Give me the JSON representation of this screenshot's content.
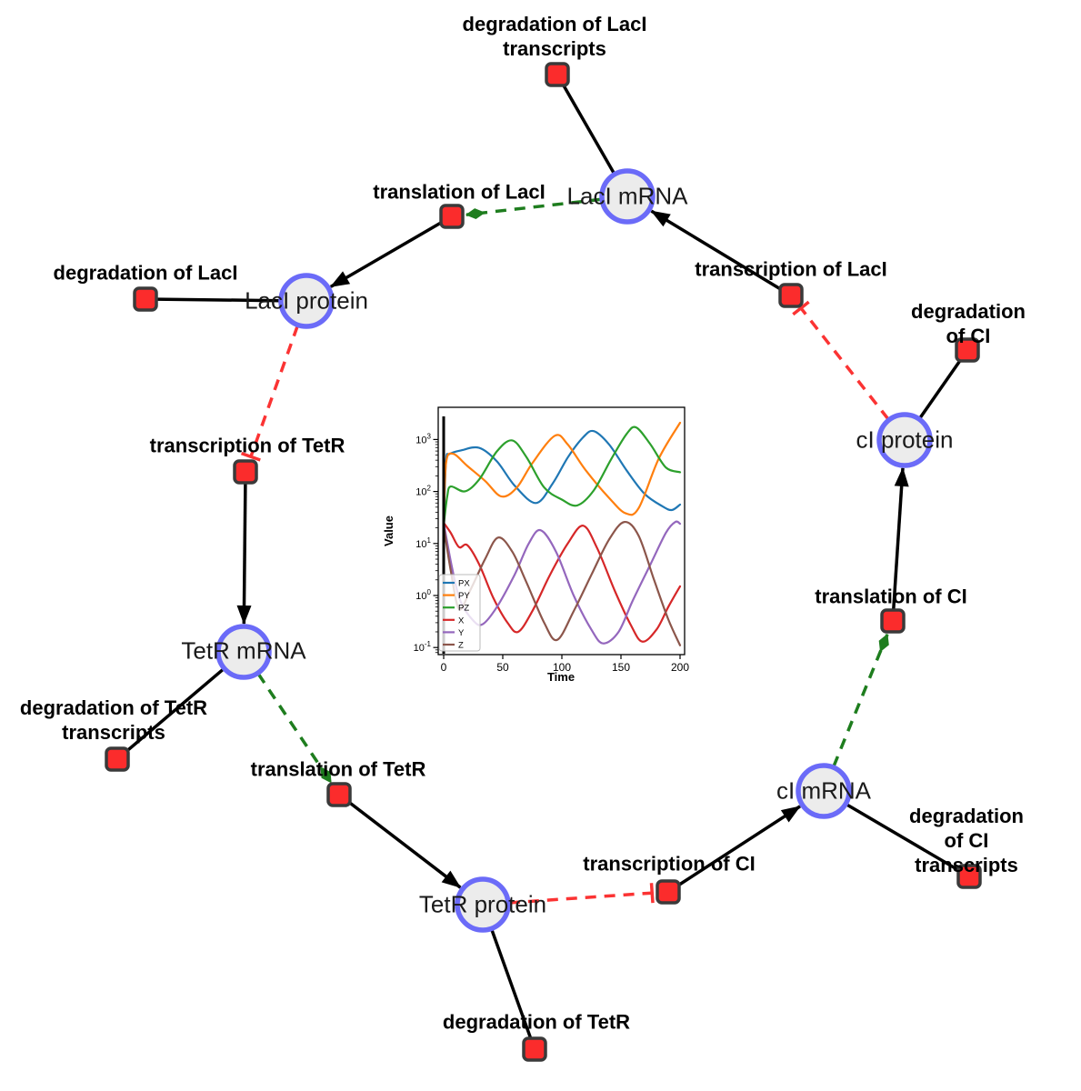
{
  "figure": {
    "species_nodes": [
      {
        "id": "laci-mrna",
        "label": "LacI mRNA"
      },
      {
        "id": "laci-protein",
        "label": "LacI protein"
      },
      {
        "id": "tetr-mrna",
        "label": "TetR mRNA"
      },
      {
        "id": "tetr-protein",
        "label": "TetR protein"
      },
      {
        "id": "ci-mrna",
        "label": "cI mRNA"
      },
      {
        "id": "ci-protein",
        "label": "cI protein"
      }
    ],
    "reaction_nodes": [
      {
        "id": "deg-laci-transcripts",
        "label": "degradation of LacI\ntranscripts"
      },
      {
        "id": "translation-laci",
        "label": "translation of LacI"
      },
      {
        "id": "deg-laci",
        "label": "degradation of LacI"
      },
      {
        "id": "transcription-tetr",
        "label": "transcription of TetR"
      },
      {
        "id": "deg-tetr-transcripts",
        "label": "degradation of TetR\ntranscripts"
      },
      {
        "id": "translation-tetr",
        "label": "translation of TetR"
      },
      {
        "id": "deg-tetr",
        "label": "degradation of TetR"
      },
      {
        "id": "transcription-ci",
        "label": "transcription of CI"
      },
      {
        "id": "deg-ci-transcripts",
        "label": "degradation of CI\ntranscripts"
      },
      {
        "id": "translation-ci",
        "label": "translation of CI"
      },
      {
        "id": "deg-ci",
        "label": "degradation of CI"
      },
      {
        "id": "transcription-laci",
        "label": "transcription of LacI"
      }
    ],
    "colors": {
      "species_fill": "#ececec",
      "species_stroke": "#6b6bf8",
      "reaction_fill": "#fb2c2c",
      "reaction_stroke": "#3a3a3a",
      "product_edge": "#000000",
      "modifier_edge": "#1e7d1e",
      "inhibition_edge": "#fb3333"
    }
  },
  "chart_data": {
    "type": "line",
    "xlabel": "Time",
    "ylabel": "Value",
    "x_ticks": [
      0,
      50,
      100,
      150,
      200
    ],
    "y_tick_exponents": [
      -1,
      0,
      1,
      2,
      3
    ],
    "xlim": [
      -6,
      204
    ],
    "yscale": "log",
    "grid": false,
    "legend_position": "lower left",
    "init_line_t": 0,
    "series": [
      {
        "name": "PX",
        "color": "#1f77b4",
        "points": [
          [
            0,
            22
          ],
          [
            2,
            380
          ],
          [
            5,
            525
          ],
          [
            15,
            620
          ],
          [
            30,
            690
          ],
          [
            45,
            380
          ],
          [
            60,
            130
          ],
          [
            78,
            60
          ],
          [
            92,
            140
          ],
          [
            105,
            450
          ],
          [
            118,
            1100
          ],
          [
            127,
            1450
          ],
          [
            140,
            800
          ],
          [
            155,
            250
          ],
          [
            170,
            90
          ],
          [
            185,
            52
          ],
          [
            193,
            44
          ],
          [
            200,
            56
          ]
        ]
      },
      {
        "name": "PY",
        "color": "#ff7f0e",
        "points": [
          [
            0,
            22
          ],
          [
            2,
            350
          ],
          [
            8,
            530
          ],
          [
            20,
            310
          ],
          [
            35,
            160
          ],
          [
            49,
            80
          ],
          [
            62,
            120
          ],
          [
            75,
            350
          ],
          [
            94,
            1180
          ],
          [
            105,
            800
          ],
          [
            120,
            260
          ],
          [
            140,
            75
          ],
          [
            154,
            38
          ],
          [
            165,
            48
          ],
          [
            182,
            430
          ],
          [
            200,
            2100
          ]
        ]
      },
      {
        "name": "PZ",
        "color": "#2ca02c",
        "points": [
          [
            0,
            22
          ],
          [
            3,
            80
          ],
          [
            6,
            125
          ],
          [
            18,
            101
          ],
          [
            30,
            170
          ],
          [
            45,
            590
          ],
          [
            58,
            960
          ],
          [
            70,
            460
          ],
          [
            85,
            120
          ],
          [
            100,
            70
          ],
          [
            113,
            54
          ],
          [
            127,
            105
          ],
          [
            142,
            430
          ],
          [
            155,
            1300
          ],
          [
            163,
            1700
          ],
          [
            175,
            800
          ],
          [
            188,
            290
          ],
          [
            200,
            235
          ]
        ]
      },
      {
        "name": "X",
        "color": "#d62728",
        "points": [
          [
            0,
            25
          ],
          [
            6,
            16
          ],
          [
            13,
            8.5
          ],
          [
            20,
            9.3
          ],
          [
            30,
            4
          ],
          [
            42,
            0.9
          ],
          [
            54,
            0.3
          ],
          [
            63,
            0.2
          ],
          [
            75,
            0.5
          ],
          [
            90,
            2.5
          ],
          [
            105,
            10
          ],
          [
            118,
            22
          ],
          [
            130,
            8
          ],
          [
            145,
            1.2
          ],
          [
            158,
            0.28
          ],
          [
            168,
            0.13
          ],
          [
            180,
            0.22
          ],
          [
            190,
            0.6
          ],
          [
            200,
            1.5
          ]
        ]
      },
      {
        "name": "Y",
        "color": "#9467bd",
        "points": [
          [
            0,
            25
          ],
          [
            7,
            3.5
          ],
          [
            14,
            0.8
          ],
          [
            25,
            0.33
          ],
          [
            33,
            0.28
          ],
          [
            45,
            0.6
          ],
          [
            60,
            2.5
          ],
          [
            72,
            10
          ],
          [
            82,
            18
          ],
          [
            95,
            7
          ],
          [
            110,
            1
          ],
          [
            125,
            0.22
          ],
          [
            135,
            0.12
          ],
          [
            148,
            0.2
          ],
          [
            160,
            0.8
          ],
          [
            175,
            4
          ],
          [
            188,
            16
          ],
          [
            196,
            26
          ],
          [
            200,
            24
          ]
        ]
      },
      {
        "name": "Z",
        "color": "#8c564b",
        "points": [
          [
            0,
            22
          ],
          [
            6,
            3
          ],
          [
            13,
            0.55
          ],
          [
            22,
            1.2
          ],
          [
            35,
            5
          ],
          [
            46,
            13
          ],
          [
            58,
            7
          ],
          [
            70,
            1.8
          ],
          [
            85,
            0.3
          ],
          [
            96,
            0.14
          ],
          [
            110,
            0.5
          ],
          [
            125,
            2.5
          ],
          [
            140,
            12
          ],
          [
            153,
            26
          ],
          [
            165,
            14
          ],
          [
            178,
            2
          ],
          [
            190,
            0.35
          ],
          [
            200,
            0.11
          ]
        ]
      }
    ]
  }
}
